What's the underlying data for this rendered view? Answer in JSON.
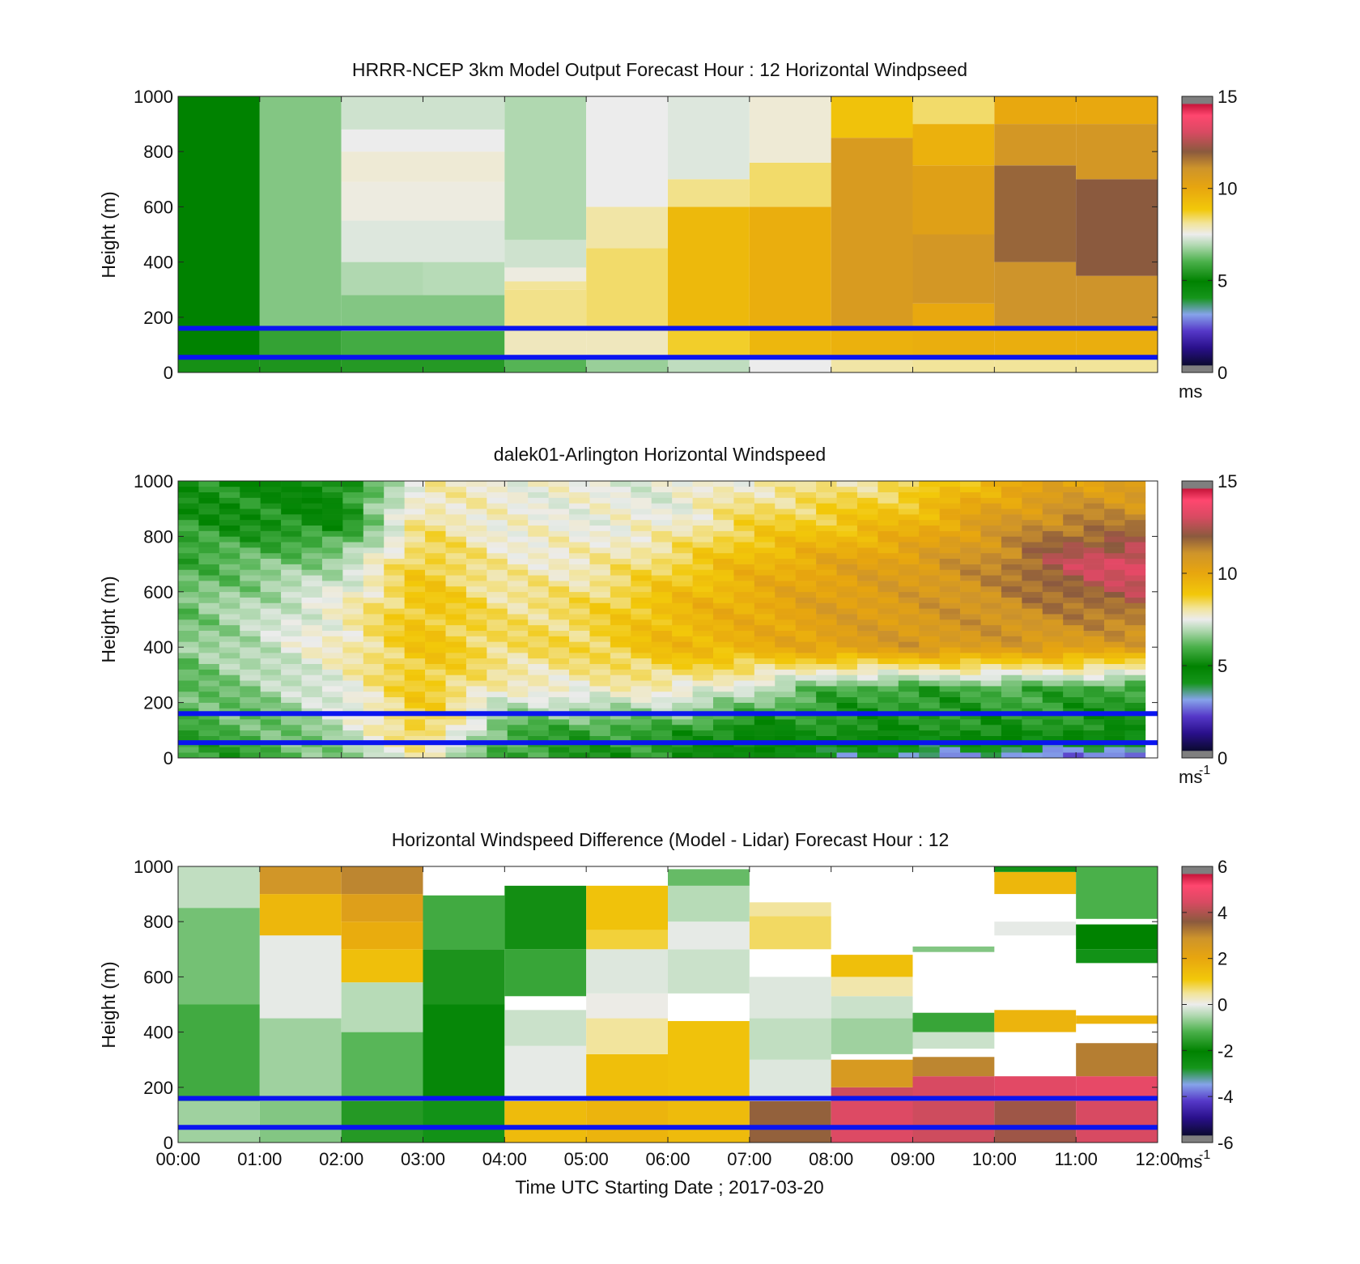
{
  "figure": {
    "xlabel": "Time UTC  Starting Date ; 2017-03-20",
    "x_tick_labels": [
      "00:00",
      "01:00",
      "02:00",
      "03:00",
      "04:00",
      "05:00",
      "06:00",
      "07:00",
      "08:00",
      "09:00",
      "10:00",
      "11:00",
      "12:00"
    ],
    "line_color": "#0a14f0"
  },
  "chart_data": [
    {
      "type": "heatmap",
      "title": "HRRR-NCEP 3km Model Output   Forecast Hour : 12 Horizontal Windpseed",
      "ylabel": "Height (m)",
      "ylim": [
        0,
        1000
      ],
      "xlim_hours": [
        0,
        12
      ],
      "y_ticks": [
        0,
        200,
        400,
        600,
        800,
        1000
      ],
      "colorbar": {
        "min": 0,
        "max": 15,
        "ticks": [
          0,
          5,
          10,
          15
        ],
        "unit": "ms",
        "unit_sup": ""
      },
      "reference_heights_m": [
        160,
        55
      ],
      "columns": [
        {
          "x0": 0,
          "x1": 1,
          "bands": [
            [
              0,
              60,
              4.8
            ],
            [
              60,
              1000,
              4.5
            ]
          ]
        },
        {
          "x0": 1,
          "x1": 2,
          "bands": [
            [
              0,
              60,
              4.9
            ],
            [
              60,
              160,
              5.2
            ],
            [
              160,
              1000,
              6.0
            ]
          ]
        },
        {
          "x0": 2,
          "x1": 3,
          "bands": [
            [
              0,
              60,
              5.0
            ],
            [
              60,
              150,
              5.4
            ],
            [
              150,
              280,
              6.0
            ],
            [
              280,
              400,
              6.4
            ],
            [
              400,
              550,
              7.0
            ],
            [
              550,
              690,
              7.3
            ],
            [
              690,
              800,
              7.4
            ],
            [
              800,
              880,
              7.2
            ],
            [
              880,
              1000,
              6.8
            ]
          ]
        },
        {
          "x0": 3,
          "x1": 4,
          "bands": [
            [
              0,
              60,
              5.0
            ],
            [
              60,
              150,
              5.4
            ],
            [
              150,
              280,
              6.0
            ],
            [
              280,
              400,
              6.5
            ],
            [
              400,
              550,
              7.0
            ],
            [
              550,
              690,
              7.3
            ],
            [
              690,
              800,
              7.4
            ],
            [
              800,
              880,
              7.2
            ],
            [
              880,
              1000,
              6.8
            ]
          ]
        },
        {
          "x0": 4,
          "x1": 5,
          "bands": [
            [
              0,
              60,
              5.6
            ],
            [
              60,
              150,
              7.6
            ],
            [
              150,
              300,
              8.0
            ],
            [
              300,
              330,
              7.9
            ],
            [
              330,
              380,
              7.3
            ],
            [
              380,
              480,
              6.8
            ],
            [
              480,
              1000,
              6.4
            ]
          ]
        },
        {
          "x0": 5,
          "x1": 6,
          "bands": [
            [
              0,
              60,
              6.2
            ],
            [
              60,
              150,
              7.6
            ],
            [
              150,
              450,
              8.2
            ],
            [
              450,
              600,
              7.8
            ],
            [
              600,
              1000,
              7.2
            ]
          ]
        },
        {
          "x0": 6,
          "x1": 7,
          "bands": [
            [
              0,
              60,
              6.6
            ],
            [
              60,
              150,
              8.6
            ],
            [
              150,
              600,
              9.3
            ],
            [
              600,
              700,
              8.0
            ],
            [
              700,
              1000,
              7.0
            ]
          ]
        },
        {
          "x0": 7,
          "x1": 8,
          "bands": [
            [
              0,
              60,
              7.2
            ],
            [
              60,
              150,
              9.4
            ],
            [
              150,
              600,
              9.7
            ],
            [
              600,
              760,
              8.2
            ],
            [
              760,
              1000,
              7.4
            ]
          ]
        },
        {
          "x0": 8,
          "x1": 9,
          "bands": [
            [
              0,
              60,
              7.8
            ],
            [
              60,
              150,
              9.6
            ],
            [
              150,
              850,
              10.6
            ],
            [
              850,
              1000,
              9.0
            ]
          ]
        },
        {
          "x0": 9,
          "x1": 10,
          "bands": [
            [
              0,
              60,
              7.9
            ],
            [
              60,
              150,
              9.7
            ],
            [
              150,
              250,
              9.9
            ],
            [
              250,
              500,
              10.8
            ],
            [
              500,
              750,
              10.3
            ],
            [
              750,
              900,
              9.6
            ],
            [
              900,
              1000,
              8.2
            ]
          ]
        },
        {
          "x0": 10,
          "x1": 11,
          "bands": [
            [
              0,
              60,
              7.9
            ],
            [
              60,
              150,
              9.7
            ],
            [
              150,
              400,
              11.0
            ],
            [
              400,
              750,
              11.8
            ],
            [
              750,
              900,
              10.8
            ],
            [
              900,
              1000,
              9.9
            ]
          ]
        },
        {
          "x0": 11,
          "x1": 12,
          "bands": [
            [
              0,
              60,
              7.9
            ],
            [
              60,
              150,
              9.7
            ],
            [
              150,
              350,
              11.0
            ],
            [
              350,
              700,
              12.0
            ],
            [
              700,
              900,
              10.8
            ],
            [
              900,
              1000,
              9.9
            ]
          ]
        }
      ]
    },
    {
      "type": "heatmap",
      "title": "dalek01-Arlington  Horizontal Windspeed",
      "ylabel": "Height (m)",
      "ylim": [
        0,
        1000
      ],
      "xlim_hours": [
        0,
        12
      ],
      "y_ticks": [
        0,
        200,
        400,
        600,
        800,
        1000
      ],
      "colorbar": {
        "min": 0,
        "max": 15,
        "ticks": [
          0,
          5,
          10,
          15
        ],
        "unit": "ms",
        "unit_sup": "-1"
      },
      "reference_heights_m": [
        160,
        55
      ],
      "lidar_profile": {
        "x_end_hour": 11.85,
        "times": [
          0,
          1,
          2,
          3,
          4,
          5,
          6,
          7,
          8,
          9,
          10,
          11,
          11.85
        ],
        "levels": [
          {
            "h": 0,
            "v": [
              5.0,
              5.2,
              6.0,
              7.5,
              5.2,
              4.9,
              4.9,
              4.2,
              3.4,
              3.0,
              2.8,
              2.5,
              2.2
            ]
          },
          {
            "h": 100,
            "v": [
              5.3,
              5.6,
              6.5,
              8.8,
              5.4,
              5.2,
              5.2,
              4.4,
              4.8,
              4.7,
              4.9,
              4.8,
              4.5
            ]
          },
          {
            "h": 250,
            "v": [
              5.6,
              6.2,
              7.2,
              8.8,
              7.4,
              7.5,
              7.6,
              6.8,
              5.4,
              5.2,
              5.4,
              5.3,
              5.1
            ]
          },
          {
            "h": 400,
            "v": [
              5.9,
              6.7,
              7.6,
              9.0,
              8.2,
              8.4,
              9.3,
              9.6,
              10.3,
              10.7,
              10.6,
              10.5,
              10.4
            ]
          },
          {
            "h": 550,
            "v": [
              5.8,
              6.5,
              7.4,
              9.0,
              8.0,
              8.3,
              9.2,
              9.8,
              10.4,
              10.6,
              11.0,
              11.5,
              12.0
            ]
          },
          {
            "h": 700,
            "v": [
              5.4,
              5.8,
              6.4,
              8.8,
              7.6,
              7.6,
              8.4,
              9.4,
              10.1,
              10.5,
              11.2,
              12.8,
              13.5
            ]
          },
          {
            "h": 850,
            "v": [
              5.0,
              4.8,
              4.6,
              8.0,
              7.3,
              7.3,
              7.3,
              8.4,
              8.8,
              9.4,
              10.6,
              11.4,
              11.2
            ]
          },
          {
            "h": 1000,
            "v": [
              4.8,
              4.6,
              4.5,
              7.6,
              7.4,
              7.2,
              7.0,
              7.6,
              7.8,
              8.2,
              9.5,
              10.2,
              10.4
            ]
          }
        ]
      }
    },
    {
      "type": "heatmap",
      "title": "Horizontal Windspeed Difference (Model - Lidar) Forecast Hour : 12",
      "ylabel": "Height (m)",
      "xlabel": "Time UTC  Starting Date ; 2017-03-20",
      "ylim": [
        0,
        1000
      ],
      "xlim_hours": [
        0,
        12
      ],
      "y_ticks": [
        0,
        200,
        400,
        600,
        800,
        1000
      ],
      "colorbar": {
        "min": -6,
        "max": 6,
        "ticks": [
          -6,
          -4,
          -2,
          0,
          2,
          4,
          6
        ],
        "unit": "ms",
        "unit_sup": "-1"
      },
      "reference_heights_m": [
        160,
        55
      ],
      "columns": [
        {
          "x0": 0,
          "x1": 1,
          "bands": [
            [
              0,
              150,
              -1.0
            ],
            [
              150,
              500,
              -1.7
            ],
            [
              500,
              850,
              -1.3
            ],
            [
              850,
              1000,
              -0.7
            ]
          ]
        },
        {
          "x0": 1,
          "x1": 2,
          "bands": [
            [
              0,
              150,
              -1.2
            ],
            [
              150,
              450,
              -1.0
            ],
            [
              450,
              750,
              -0.3
            ],
            [
              750,
              900,
              1.5
            ],
            [
              900,
              1000,
              2.7
            ]
          ]
        },
        {
          "x0": 2,
          "x1": 3,
          "bands": [
            [
              0,
              150,
              -2.0
            ],
            [
              150,
              400,
              -1.5
            ],
            [
              400,
              580,
              -0.8
            ],
            [
              580,
              700,
              1.3
            ],
            [
              700,
              800,
              1.8
            ],
            [
              800,
              900,
              2.3
            ],
            [
              900,
              1000,
              3.0
            ]
          ]
        },
        {
          "x0": 3,
          "x1": 4,
          "bands": [
            [
              0,
              150,
              -3.0
            ],
            [
              150,
              500,
              -2.6
            ],
            [
              500,
              700,
              -2.1
            ],
            [
              700,
              895,
              -1.7
            ]
          ]
        },
        {
          "x0": 4,
          "x1": 5,
          "bands": [
            [
              0,
              150,
              1.4
            ],
            [
              150,
              350,
              -0.3
            ],
            [
              350,
              480,
              -0.6
            ],
            [
              530,
              700,
              -1.8
            ],
            [
              700,
              930,
              -2.2
            ]
          ]
        },
        {
          "x0": 5,
          "x1": 6,
          "bands": [
            [
              0,
              150,
              1.6
            ],
            [
              150,
              320,
              1.3
            ],
            [
              320,
              450,
              0.3
            ],
            [
              450,
              540,
              -0.2
            ],
            [
              540,
              700,
              -0.4
            ],
            [
              700,
              770,
              0.8
            ],
            [
              770,
              930,
              1.2
            ]
          ]
        },
        {
          "x0": 6,
          "x1": 7,
          "bands": [
            [
              0,
              150,
              1.4
            ],
            [
              150,
              440,
              1.2
            ],
            [
              540,
              700,
              -0.6
            ],
            [
              700,
              800,
              -0.3
            ],
            [
              800,
              930,
              -0.8
            ],
            [
              930,
              990,
              -1.4
            ]
          ]
        },
        {
          "x0": 7,
          "x1": 8,
          "bands": [
            [
              0,
              150,
              3.5
            ],
            [
              150,
              300,
              -0.4
            ],
            [
              300,
              450,
              -0.7
            ],
            [
              450,
              600,
              -0.4
            ],
            [
              700,
              820,
              0.6
            ],
            [
              820,
              870,
              0.3
            ]
          ]
        },
        {
          "x0": 8,
          "x1": 9,
          "bands": [
            [
              0,
              150,
              4.5
            ],
            [
              150,
              200,
              4.3
            ],
            [
              200,
              300,
              2.5
            ],
            [
              320,
              450,
              -1.0
            ],
            [
              450,
              530,
              -0.6
            ],
            [
              530,
              600,
              0.2
            ],
            [
              600,
              680,
              1.3
            ]
          ]
        },
        {
          "x0": 9,
          "x1": 10,
          "bands": [
            [
              0,
              150,
              4.3
            ],
            [
              150,
              240,
              4.4
            ],
            [
              240,
              310,
              3.0
            ],
            [
              340,
              400,
              -0.6
            ],
            [
              400,
              470,
              -1.8
            ],
            [
              690,
              710,
              -1.2
            ]
          ]
        },
        {
          "x0": 10,
          "x1": 11,
          "bands": [
            [
              0,
              150,
              3.8
            ],
            [
              150,
              240,
              4.6
            ],
            [
              400,
              480,
              1.6
            ],
            [
              750,
              800,
              -0.3
            ],
            [
              900,
              980,
              1.5
            ],
            [
              980,
              1000,
              -3.0
            ]
          ]
        },
        {
          "x0": 11,
          "x1": 12,
          "bands": [
            [
              0,
              150,
              4.4
            ],
            [
              150,
              240,
              4.7
            ],
            [
              240,
              360,
              3.1
            ],
            [
              430,
              460,
              1.6
            ],
            [
              650,
              700,
              -3.0
            ],
            [
              700,
              790,
              -2.4
            ],
            [
              810,
              1000,
              -1.6
            ]
          ]
        }
      ]
    }
  ]
}
